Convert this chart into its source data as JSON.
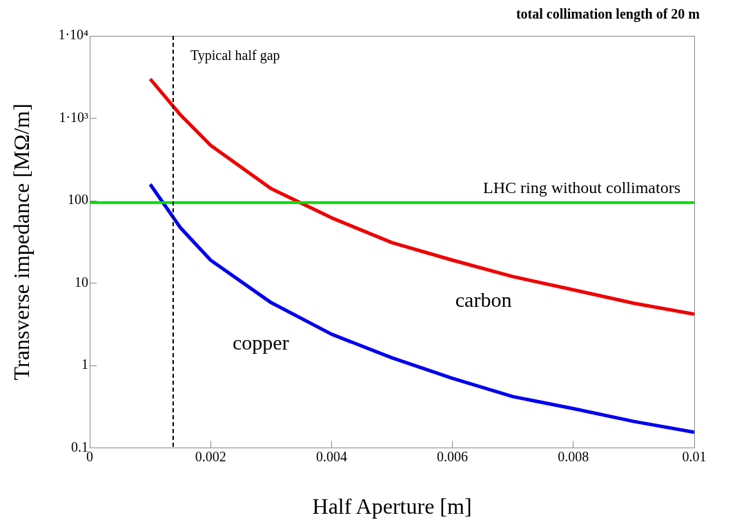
{
  "chart_data": {
    "type": "line",
    "title": "total collimation length of 20 m",
    "xlabel": "Half Aperture [m]",
    "ylabel": "Transverse impedance [MΩ/m]",
    "log": "y",
    "grid": false,
    "legend": false,
    "marker": "none",
    "line_style": "solid",
    "xlim": [
      0,
      0.01
    ],
    "xticks": [
      0,
      0.002,
      0.004,
      0.006,
      0.008,
      0.01
    ],
    "ylim": [
      0.1,
      10000
    ],
    "yticks": [
      0.1,
      1,
      10,
      100,
      {
        "value": 1000,
        "label": "1·10³"
      },
      {
        "value": 10000,
        "label": "1·10⁴"
      }
    ],
    "x": [
      0.001,
      0.0015,
      0.002,
      0.003,
      0.004,
      0.005,
      0.006,
      0.007,
      0.008,
      0.009,
      0.01
    ],
    "series": [
      {
        "name": "carbon",
        "color": "#ee0000",
        "values": [
          3000,
          1100,
          470,
          140,
          62,
          31,
          19,
          12,
          8.3,
          5.7,
          4.2
        ]
      },
      {
        "name": "copper",
        "color": "#0000ee",
        "values": [
          158,
          47,
          19,
          5.8,
          2.4,
          1.24,
          0.7,
          0.42,
          0.3,
          0.21,
          0.155
        ]
      }
    ],
    "ref_lines": [
      {
        "axis": "y",
        "value": 95,
        "label": "LHC ring without collimators",
        "color": "#00dd00",
        "line_style": "solid"
      },
      {
        "axis": "x",
        "value": 0.00138,
        "label": "Typical half gap",
        "color": "#000000",
        "line_style": "dashed"
      }
    ]
  }
}
